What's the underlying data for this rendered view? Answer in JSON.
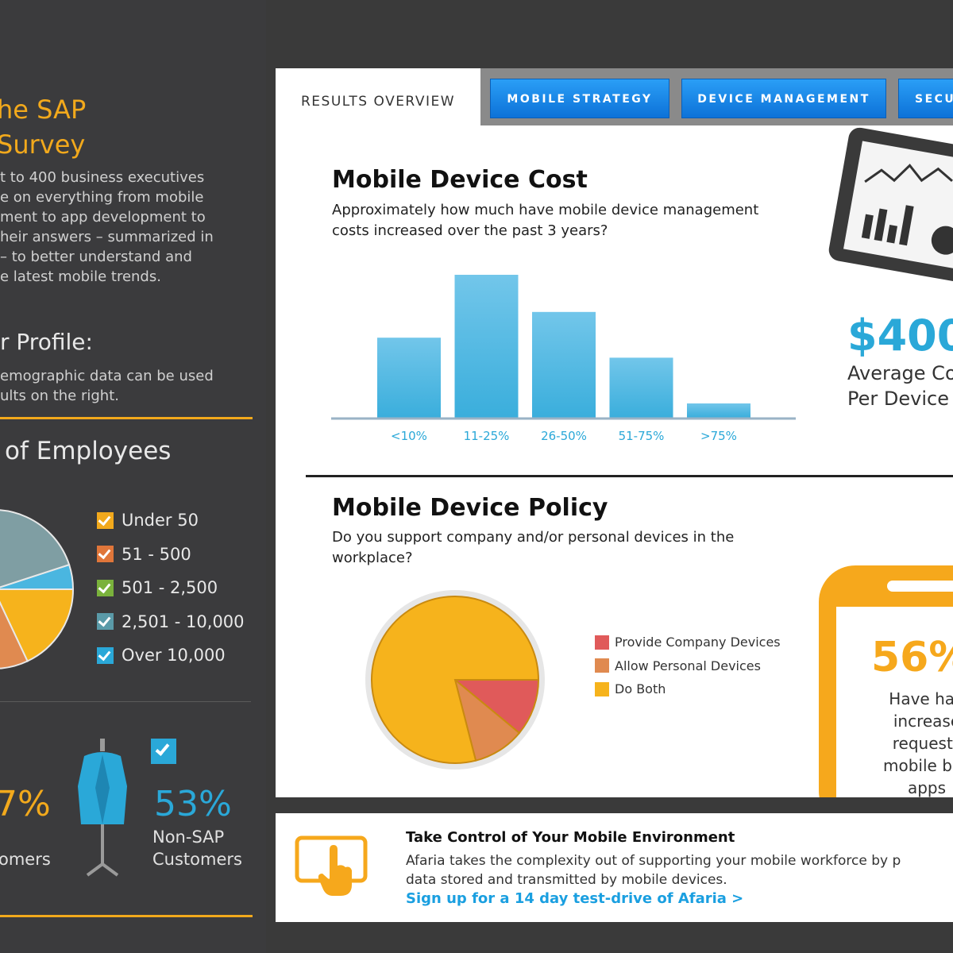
{
  "sidebar": {
    "title_line1": "he SAP",
    "title_line2": "Survey",
    "intro_lines": [
      "t to 400 business executives",
      "e on everything from mobile",
      "ment to app development to",
      "heir answers – summarized in",
      "– to better understand and",
      "e latest mobile trends."
    ],
    "profile_heading": "r Profile:",
    "profile_lines": [
      "emographic data can be used",
      "ults on the right."
    ],
    "employees_heading": "of Employees",
    "employee_legend": [
      {
        "label": "Under 50",
        "color": "#f2a91c"
      },
      {
        "label": "51 - 500",
        "color": "#e0763a"
      },
      {
        "label": "501 - 2,500",
        "color": "#7ab23c"
      },
      {
        "label": "2,501 - 10,000",
        "color": "#5a9aa8"
      },
      {
        "label": "Over 10,000",
        "color": "#2aa8d8"
      }
    ],
    "sap_percent": "7%",
    "sap_label": "omers",
    "non_sap_percent": "53%",
    "non_sap_label_1": "Non-SAP",
    "non_sap_label_2": "Customers"
  },
  "tabs": {
    "active": "RESULTS OVERVIEW",
    "items": [
      "MOBILE STRATEGY",
      "DEVICE MANAGEMENT",
      "SECU"
    ]
  },
  "cost": {
    "title": "Mobile Device Cost",
    "subtitle_1": "Approximately how much have mobile device management",
    "subtitle_2": "costs increased over the past 3 years?",
    "stat_value": "$400",
    "stat_label_1": "Average Co",
    "stat_label_2": "Per Device"
  },
  "policy": {
    "title": "Mobile Device Policy",
    "subtitle_1": "Do you support company and/or personal devices in the",
    "subtitle_2": "workplace?",
    "legend": [
      {
        "label": "Provide Company Devices",
        "color": "#e05a5a"
      },
      {
        "label": "Allow Personal Devices",
        "color": "#e08a50"
      },
      {
        "label": "Do Both",
        "color": "#f6b31c"
      }
    ],
    "phone_stat": "56%",
    "phone_lines": [
      "Have had",
      "increase",
      "requests",
      "mobile bus",
      "apps"
    ]
  },
  "cta": {
    "title": "Take Control of Your Mobile Environment",
    "text_1": "Afaria takes the complexity out of supporting your mobile workforce by p",
    "text_2": "data stored and transmitted by mobile devices.",
    "link": "Sign up for a 14 day test-drive of Afaria >"
  },
  "colors": {
    "accent": "#f2a91c",
    "blue": "#1a9fe0",
    "bar": "#6cc2e6"
  },
  "chart_data": [
    {
      "type": "bar",
      "title": "Mobile Device Cost",
      "categories": [
        "<10%",
        "11-25%",
        "26-50%",
        "51-75%",
        ">75%"
      ],
      "values": [
        28,
        50,
        37,
        21,
        5
      ],
      "ylim": [
        0,
        50
      ]
    },
    {
      "type": "pie",
      "title": "Mobile Device Policy",
      "labels": [
        "Provide Company Devices",
        "Allow Personal Devices",
        "Do Both"
      ],
      "values": [
        11,
        10,
        79
      ]
    },
    {
      "type": "pie",
      "title": "Number of Employees",
      "labels": [
        "Under 50",
        "51 - 500",
        "501 - 2,500",
        "2,501 - 10,000",
        "Over 10,000"
      ],
      "values": [
        18,
        22,
        2,
        53,
        5
      ]
    }
  ]
}
